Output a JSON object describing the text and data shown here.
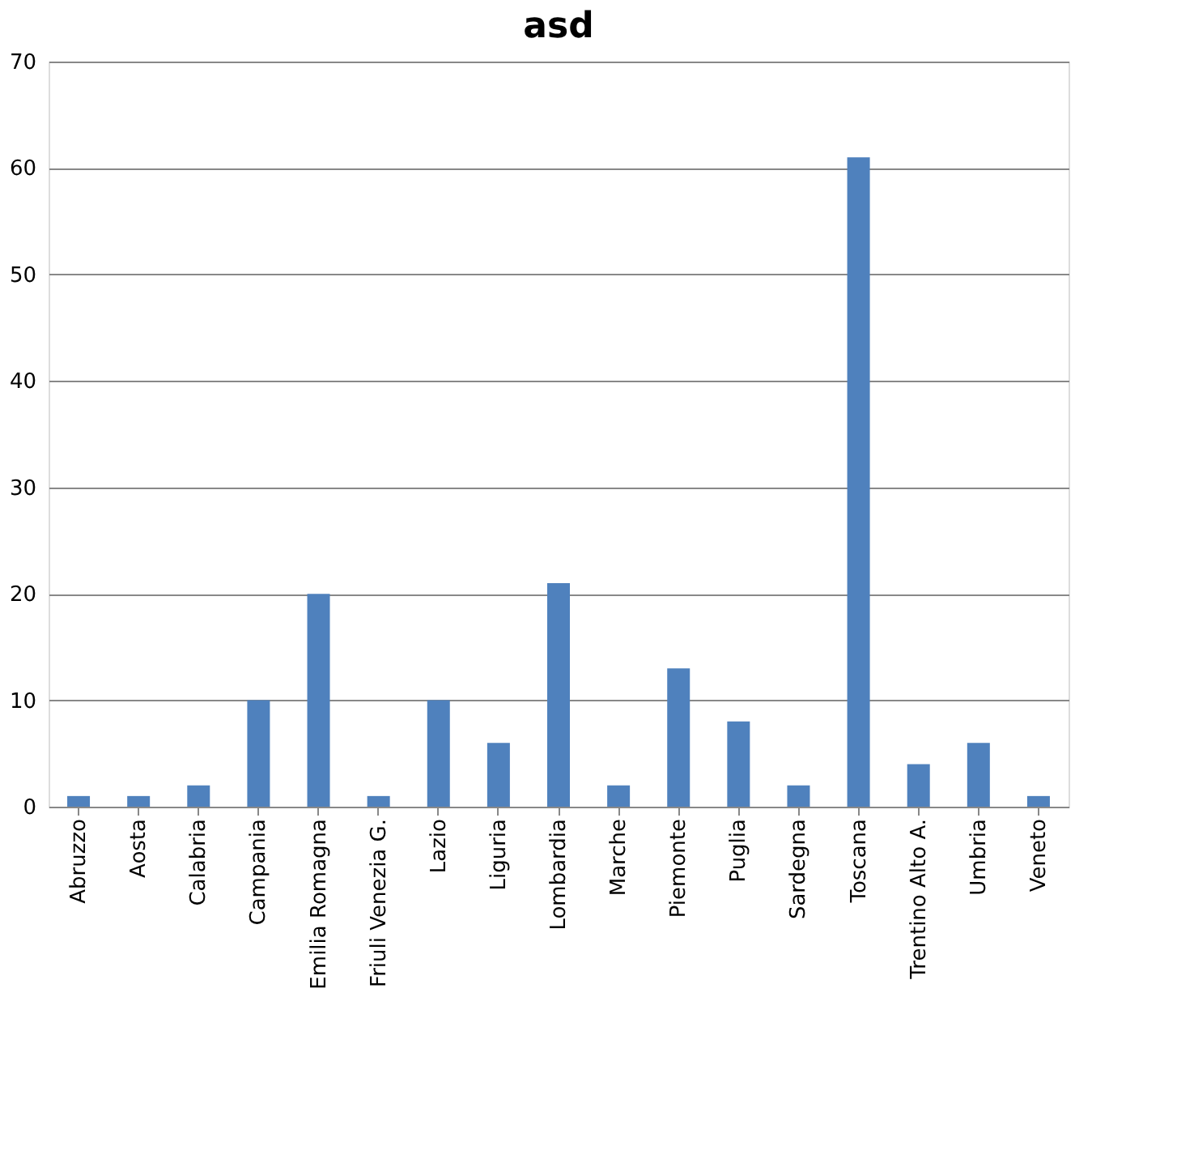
{
  "chart_data": {
    "type": "bar",
    "title": "asd",
    "categories": [
      "Abruzzo",
      "Aosta",
      "Calabria",
      "Campania",
      "Emilia Romagna",
      "Friuli Venezia G.",
      "Lazio",
      "Liguria",
      "Lombardia",
      "Marche",
      "Piemonte",
      "Puglia",
      "Sardegna",
      "Toscana",
      "Trentino Alto A.",
      "Umbria",
      "Veneto"
    ],
    "values": [
      1,
      1,
      2,
      10,
      20,
      1,
      10,
      6,
      21,
      2,
      13,
      8,
      2,
      61,
      4,
      6,
      1
    ],
    "color": "#4f81bd",
    "ylim": [
      0,
      70
    ],
    "yticks": [
      0,
      10,
      20,
      30,
      40,
      50,
      60,
      70
    ],
    "grid": "y"
  }
}
